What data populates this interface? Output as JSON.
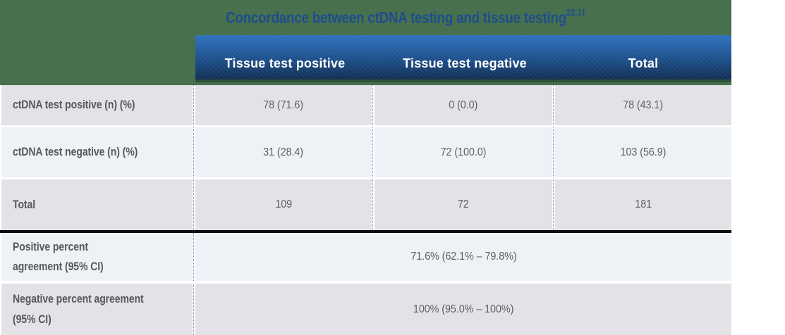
{
  "table": {
    "title": "Concordance between ctDNA testing and tissue testing",
    "title_superscript": "22,‡‡",
    "column_headers": [
      "Tissue test positive",
      "Tissue test negative",
      "Total"
    ],
    "rows": [
      {
        "label": "ctDNA test positive (n) (%)",
        "values": [
          "78 (71.6)",
          "0 (0.0)",
          "78 (43.1)"
        ]
      },
      {
        "label": "ctDNA test negative (n) (%)",
        "values": [
          "31 (28.4)",
          "72 (100.0)",
          "103 (56.9)"
        ]
      },
      {
        "label": "Total",
        "values": [
          "109",
          "72",
          "181"
        ]
      }
    ],
    "summary_rows": [
      {
        "label": [
          "Positive percent",
          "agreement (95% CI)"
        ],
        "value": "71.6% (62.1% – 79.8%)"
      },
      {
        "label": [
          "Negative percent agreement",
          "(95% CI)"
        ],
        "value": "100% (95.0% – 100%)"
      }
    ]
  },
  "chart_data": {
    "type": "table",
    "title": "Concordance between ctDNA testing and tissue testing",
    "columns": [
      "",
      "Tissue test positive",
      "Tissue test negative",
      "Total"
    ],
    "rows": [
      [
        "ctDNA test positive (n) (%)",
        "78 (71.6)",
        "0 (0.0)",
        "78 (43.1)"
      ],
      [
        "ctDNA test negative (n) (%)",
        "31 (28.4)",
        "72 (100.0)",
        "103 (56.9)"
      ],
      [
        "Total",
        "109",
        "72",
        "181"
      ],
      [
        "Positive percent agreement (95% CI)",
        "71.6% (62.1% – 79.8%)"
      ],
      [
        "Negative percent agreement (95% CI)",
        "100% (95.0% – 100%)"
      ]
    ]
  },
  "colors": {
    "banner_green": "#48704f",
    "header_gradient_top": "#2f71bb",
    "header_gradient_bottom": "#132e52",
    "title_blue": "#1d4e8c",
    "row_gray": "#e3e3e7",
    "row_light": "#eef2f6",
    "divider_black": "#0a0a0a",
    "text_gray": "#57585b"
  }
}
